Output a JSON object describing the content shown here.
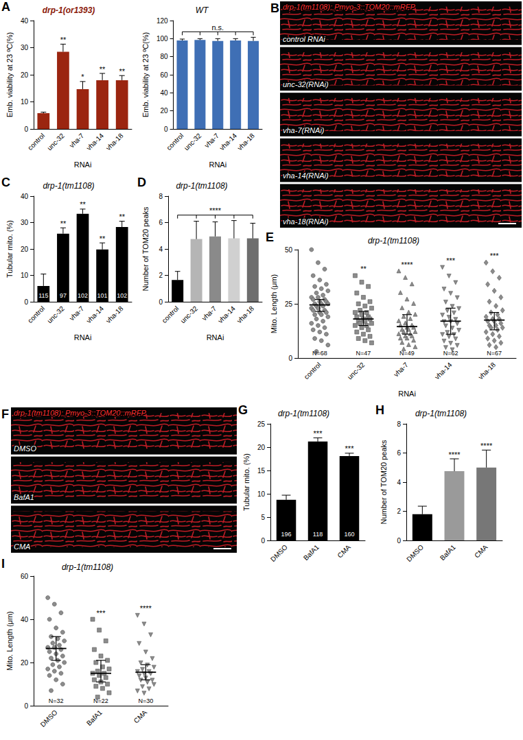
{
  "chart_data": [
    {
      "type": "bar",
      "panel": "A",
      "title": "drp-1(or1393)",
      "ylabel": "Emb. viability at 23 ºC(%)",
      "xlabel": "RNAi",
      "categories": [
        "control",
        "unc-32",
        "vha-7",
        "vha-14",
        "vha-18"
      ],
      "values": [
        5.8,
        28.5,
        14.7,
        18,
        18
      ],
      "errors": [
        0.4,
        2.8,
        2.8,
        2.5,
        1.7
      ],
      "significance": [
        null,
        "**",
        "*",
        "**",
        "**"
      ],
      "color": "#9b2510",
      "ylim": [
        0,
        40
      ],
      "yticks": [
        0,
        10,
        20,
        30,
        40
      ],
      "grid": false
    },
    {
      "type": "bar",
      "title": "WT",
      "ylabel": "Emb. viability at 23 ºC(%)",
      "xlabel": "RNAi",
      "categories": [
        "control",
        "unc-32",
        "vha-7",
        "vha-14",
        "vha-18"
      ],
      "values": [
        98,
        98.5,
        97.5,
        98,
        97.5
      ],
      "errors": [
        1.5,
        1.5,
        2.5,
        2,
        4
      ],
      "bracket": {
        "label": "n.s.",
        "from": "control",
        "to": [
          "unc-32",
          "vha-7",
          "vha-14",
          "vha-18"
        ]
      },
      "color": "#3f6fb5",
      "ylim": [
        0,
        120
      ],
      "yticks": [
        0,
        20,
        40,
        60,
        80,
        100,
        120
      ],
      "grid": false
    },
    {
      "type": "image",
      "panel": "B",
      "title": "drp-1(tm1108); Pmyo-3::TOM20::mRFP",
      "panels": [
        "control RNAi",
        "unc-32(RNAi)",
        "vha-7(RNAi)",
        "vha-14(RNAi)",
        "vha-18(RNAi)"
      ]
    },
    {
      "type": "bar",
      "panel": "C",
      "title": "drp-1(tm1108)",
      "ylabel": "Tubular mito. (%)",
      "xlabel": "RNAi",
      "categories": [
        "control",
        "unc-32",
        "vha-7",
        "vha-14",
        "vha-18"
      ],
      "values": [
        6,
        25.8,
        33.3,
        19.8,
        28.3
      ],
      "errors": [
        4.5,
        2.2,
        1.8,
        2.5,
        2.2
      ],
      "n": [
        115,
        97,
        102,
        101,
        102
      ],
      "significance": [
        null,
        "**",
        "**",
        "**",
        "**"
      ],
      "color": "#000000",
      "ylim": [
        0,
        40
      ],
      "yticks": [
        0,
        10,
        20,
        30,
        40
      ],
      "grid": false
    },
    {
      "type": "bar",
      "panel": "D",
      "title": "drp-1(tm1108)",
      "ylabel": "Number of TOM20 peaks",
      "xlabel": "RNAi",
      "categories": [
        "control",
        "unc-32",
        "vha-7",
        "vha-14",
        "vha-18"
      ],
      "values": [
        1.65,
        4.75,
        4.95,
        4.8,
        4.8
      ],
      "errors": [
        0.65,
        1.35,
        1.1,
        1.35,
        1.15
      ],
      "bracket": {
        "label": "****",
        "from": "control",
        "to": [
          "unc-32",
          "vha-7",
          "vha-14",
          "vha-18"
        ]
      },
      "colors": [
        "#000000",
        "#b5b5b5",
        "#8a8a8a",
        "#d0d0d0",
        "#6e6e6e"
      ],
      "ylim": [
        0,
        8
      ],
      "yticks": [
        0,
        2,
        4,
        6,
        8
      ],
      "grid": false
    },
    {
      "type": "dot",
      "panel": "E",
      "title": "drp-1(tm1108)",
      "ylabel": "Mito. Length (μm)",
      "xlabel": "RNAi",
      "series": [
        {
          "name": "control",
          "marker": "circle",
          "color": "#8c8c8c",
          "median": 24.5,
          "iqr": [
            21.5,
            27
          ],
          "significance": null,
          "n_label": "N=68",
          "values": [
            50,
            44,
            41,
            38,
            36,
            34,
            33,
            32,
            31,
            30,
            29,
            28,
            28,
            27,
            27,
            26,
            26,
            25,
            25,
            25,
            24,
            24,
            23,
            23,
            22,
            22,
            21,
            21,
            20,
            20,
            19,
            18,
            17,
            16,
            15,
            14,
            13,
            12,
            11,
            9,
            8,
            6,
            3
          ]
        },
        {
          "name": "unc-32",
          "marker": "rect",
          "color": "#8c8c8c",
          "median": 18,
          "iqr": [
            15,
            21.5
          ],
          "significance": "**",
          "n_label": "N=47",
          "values": [
            38,
            35,
            33,
            30,
            28,
            26,
            25,
            24,
            23,
            22,
            21,
            21,
            20,
            19,
            19,
            18,
            18,
            17,
            17,
            16,
            16,
            15,
            15,
            14,
            13,
            12,
            11,
            10,
            9,
            8,
            7
          ]
        },
        {
          "name": "vha-7",
          "marker": "triangle",
          "color": "#8c8c8c",
          "median": 14.5,
          "iqr": [
            11,
            20
          ],
          "significance": "****",
          "n_label": "N=49",
          "values": [
            40,
            37,
            34,
            30,
            27,
            25,
            23,
            21,
            20,
            19,
            18,
            17,
            16,
            15,
            15,
            14,
            14,
            13,
            13,
            12,
            12,
            11,
            11,
            10,
            10,
            9,
            9,
            8,
            7,
            6,
            5,
            4
          ]
        },
        {
          "name": "vha-14",
          "marker": "triangle-down",
          "color": "#8c8c8c",
          "median": 17,
          "iqr": [
            11,
            23
          ],
          "significance": "***",
          "n_label": "N=62",
          "values": [
            42,
            38,
            35,
            32,
            30,
            28,
            26,
            24,
            23,
            22,
            21,
            20,
            19,
            18,
            17,
            17,
            16,
            15,
            14,
            13,
            12,
            11,
            11,
            10,
            9,
            8,
            7,
            6,
            5,
            4
          ]
        },
        {
          "name": "vha-18",
          "marker": "diamond",
          "color": "#8c8c8c",
          "median": 17.5,
          "iqr": [
            13,
            21
          ],
          "significance": "***",
          "n_label": "N=67",
          "values": [
            44,
            40,
            37,
            34,
            31,
            28,
            26,
            24,
            22,
            21,
            20,
            19,
            18,
            18,
            17,
            17,
            16,
            15,
            15,
            14,
            14,
            13,
            12,
            11,
            10,
            9,
            8,
            7,
            6,
            5
          ]
        }
      ],
      "ylim": [
        0,
        50
      ],
      "yticks": [
        0,
        25,
        50
      ],
      "grid": false
    },
    {
      "type": "image",
      "panel": "F",
      "title": "drp-1(tm1108); Pmyo-3::TOM20::mRFP",
      "panels": [
        "DMSO",
        "BafA1",
        "CMA"
      ]
    },
    {
      "type": "bar",
      "panel": "G",
      "title": "drp-1(tm1108)",
      "ylabel": "Tubular mito. (%)",
      "categories": [
        "DMSO",
        "BafA1",
        "CMA"
      ],
      "values": [
        8.7,
        21.2,
        18.1
      ],
      "errors": [
        1.0,
        0.8,
        0.6
      ],
      "n": [
        196,
        118,
        160
      ],
      "significance": [
        null,
        "***",
        "***"
      ],
      "color": "#000000",
      "ylim": [
        0,
        25
      ],
      "yticks": [
        0,
        5,
        10,
        15,
        20,
        25
      ],
      "grid": false
    },
    {
      "type": "bar",
      "panel": "H",
      "title": "drp-1(tm1108)",
      "ylabel": "Number of TOM20 peaks",
      "categories": [
        "DMSO",
        "BafA1",
        "CMA"
      ],
      "values": [
        1.8,
        4.75,
        5.0
      ],
      "errors": [
        0.55,
        0.85,
        1.2
      ],
      "significance": [
        null,
        "****",
        "****"
      ],
      "colors": [
        "#000000",
        "#9a9a9a",
        "#777777"
      ],
      "ylim": [
        0,
        8
      ],
      "yticks": [
        0,
        2,
        4,
        6,
        8
      ],
      "grid": false
    },
    {
      "type": "dot",
      "panel": "I",
      "title": "drp-1(tm1108)",
      "ylabel": "Mito. Length (μm)",
      "series": [
        {
          "name": "DMSO",
          "marker": "circle",
          "color": "#8c8c8c",
          "median": 26.5,
          "iqr": [
            21,
            32
          ],
          "significance": null,
          "n_label": "N=32",
          "values": [
            50,
            47,
            43,
            40,
            36,
            34,
            32,
            31,
            30,
            29,
            28,
            27,
            27,
            26,
            25,
            24,
            23,
            22,
            21,
            20,
            19,
            18,
            17,
            16,
            15,
            14,
            12,
            10,
            7
          ]
        },
        {
          "name": "BafA1",
          "marker": "rect",
          "color": "#8c8c8c",
          "median": 15,
          "iqr": [
            11,
            21
          ],
          "significance": "***",
          "n_label": "N=22",
          "values": [
            40,
            35,
            30,
            26,
            23,
            21,
            20,
            18,
            17,
            16,
            15,
            15,
            14,
            13,
            12,
            11,
            10,
            9,
            8,
            6,
            4
          ]
        },
        {
          "name": "CMA",
          "marker": "triangle-down",
          "color": "#8c8c8c",
          "median": 15.5,
          "iqr": [
            12,
            19
          ],
          "significance": "****",
          "n_label": "N=30",
          "values": [
            42,
            38,
            33,
            29,
            25,
            22,
            20,
            19,
            18,
            17,
            16,
            16,
            15,
            15,
            14,
            13,
            12,
            12,
            11,
            10,
            9,
            8,
            7,
            6
          ]
        }
      ],
      "ylim": [
        0,
        60
      ],
      "yticks": [
        0,
        20,
        40,
        60
      ],
      "grid": false
    }
  ]
}
